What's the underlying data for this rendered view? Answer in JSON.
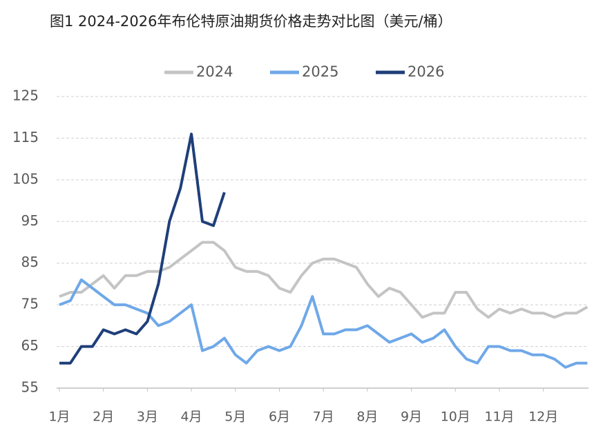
{
  "chart_data": {
    "type": "line",
    "title": "图1   2024-2026年布伦特原油期货价格走势对比图（美元/桶）",
    "x": [
      1,
      1.25,
      1.5,
      1.75,
      2,
      2.25,
      2.5,
      2.75,
      3,
      3.25,
      3.5,
      3.75,
      4,
      4.25,
      4.5,
      4.75,
      5,
      5.25,
      5.5,
      5.75,
      6,
      6.25,
      6.5,
      6.75,
      7,
      7.25,
      7.5,
      7.75,
      8,
      8.25,
      8.5,
      8.75,
      9,
      9.25,
      9.5,
      9.75,
      10,
      10.25,
      10.5,
      10.75,
      11,
      11.25,
      11.5,
      11.75,
      12,
      12.25,
      12.5,
      12.75,
      13
    ],
    "xlim": [
      1,
      13
    ],
    "xticks": [
      {
        "value": 1,
        "label": "1月"
      },
      {
        "value": 2,
        "label": "2月"
      },
      {
        "value": 3,
        "label": "3月"
      },
      {
        "value": 4,
        "label": "4月"
      },
      {
        "value": 5,
        "label": "5月"
      },
      {
        "value": 6,
        "label": "6月"
      },
      {
        "value": 7,
        "label": "7月"
      },
      {
        "value": 8,
        "label": "8月"
      },
      {
        "value": 9,
        "label": "9月"
      },
      {
        "value": 10,
        "label": "10月"
      },
      {
        "value": 11,
        "label": "11月"
      },
      {
        "value": 12,
        "label": "12月"
      }
    ],
    "ylim": [
      55,
      125
    ],
    "yticks": [
      55,
      65,
      75,
      85,
      95,
      105,
      115,
      125
    ],
    "grid": true,
    "legend": "top",
    "series": [
      {
        "name": "2024",
        "color": "#c4c4c4",
        "values": [
          77,
          78,
          78,
          80,
          82,
          79,
          82,
          82,
          83,
          83,
          84,
          86,
          88,
          90,
          90,
          88,
          84,
          83,
          83,
          82,
          79,
          78,
          82,
          85,
          86,
          86,
          85,
          84,
          80,
          77,
          79,
          78,
          75,
          72,
          73,
          73,
          78,
          78,
          74,
          72,
          74,
          73,
          74,
          73,
          73,
          72,
          73,
          73,
          74.5
        ]
      },
      {
        "name": "2025",
        "color": "#6fa8e8",
        "values": [
          75,
          76,
          81,
          79,
          77,
          75,
          75,
          74,
          73,
          70,
          71,
          73,
          75,
          64,
          65,
          67,
          63,
          61,
          64,
          65,
          64,
          65,
          70,
          77,
          68,
          68,
          69,
          69,
          70,
          68,
          66,
          67,
          68,
          66,
          67,
          69,
          65,
          62,
          61,
          65,
          65,
          64,
          64,
          63,
          63,
          62,
          60,
          61,
          61
        ]
      },
      {
        "name": "2026",
        "color": "#1f3f7a",
        "values": [
          61,
          61,
          65,
          65,
          69,
          68,
          69,
          68,
          71,
          80,
          95,
          103,
          116,
          95,
          94,
          102,
          null,
          null,
          null,
          null,
          null,
          null,
          null,
          null,
          null,
          null,
          null,
          null,
          null,
          null,
          null,
          null,
          null,
          null,
          null,
          null,
          null,
          null,
          null,
          null,
          null,
          null,
          null,
          null,
          null,
          null,
          null,
          null,
          null
        ]
      }
    ]
  }
}
